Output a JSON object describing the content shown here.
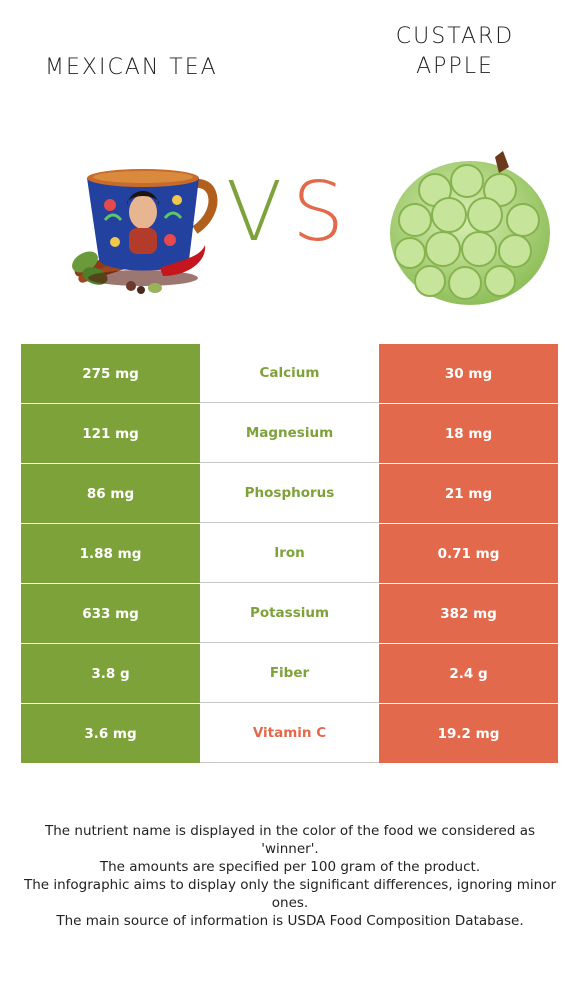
{
  "header": {
    "left_food": "MEXICAN TEA",
    "right_food": "CUSTARD\nAPPLE",
    "vs_v": "V",
    "vs_s": "S"
  },
  "colors": {
    "winner_left": "#7ea23a",
    "winner_right": "#e2694b"
  },
  "rows": [
    {
      "nutrient": "Calcium",
      "left": "275 mg",
      "right": "30 mg",
      "winner": "left"
    },
    {
      "nutrient": "Magnesium",
      "left": "121 mg",
      "right": "18 mg",
      "winner": "left"
    },
    {
      "nutrient": "Phosphorus",
      "left": "86 mg",
      "right": "21 mg",
      "winner": "left"
    },
    {
      "nutrient": "Iron",
      "left": "1.88 mg",
      "right": "0.71 mg",
      "winner": "left"
    },
    {
      "nutrient": "Potassium",
      "left": "633 mg",
      "right": "382 mg",
      "winner": "left"
    },
    {
      "nutrient": "Fiber",
      "left": "3.8 g",
      "right": "2.4 g",
      "winner": "left"
    },
    {
      "nutrient": "Vitamin C",
      "left": "3.6 mg",
      "right": "19.2 mg",
      "winner": "right"
    }
  ],
  "notes": [
    "The nutrient name is displayed in the color of the food we considered as 'winner'.",
    "The amounts are specified per 100 gram of the product.",
    "The infographic aims to display only the significant differences, ignoring minor ones.",
    "The main source of information is USDA Food Composition Database."
  ]
}
